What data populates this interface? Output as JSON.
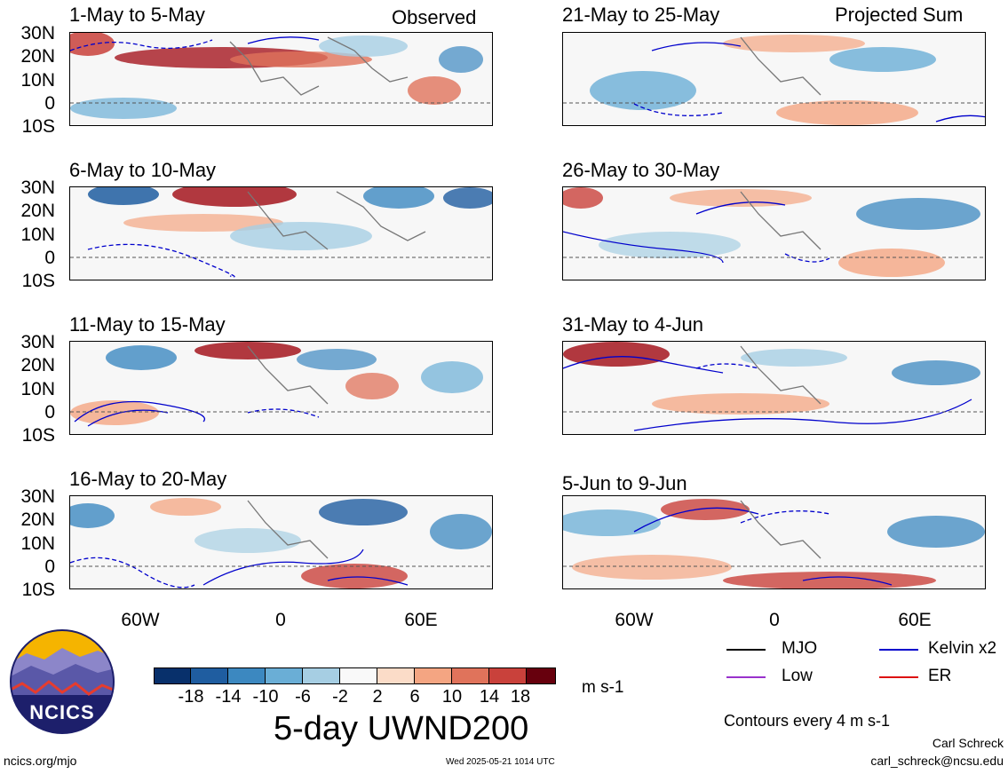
{
  "header": {
    "left_label": "Observed",
    "right_label": "Projected Sum"
  },
  "panels": [
    {
      "title": "1-May to 5-May"
    },
    {
      "title": "6-May to 10-May"
    },
    {
      "title": "11-May to 15-May"
    },
    {
      "title": "16-May to 20-May"
    },
    {
      "title": "21-May to 25-May"
    },
    {
      "title": "26-May to 30-May"
    },
    {
      "title": "31-May to 4-Jun"
    },
    {
      "title": "5-Jun to 9-Jun"
    }
  ],
  "axes": {
    "lat_labels": [
      "30N",
      "20N",
      "10N",
      "0",
      "10S"
    ],
    "lon_labels": [
      "60W",
      "0",
      "60E"
    ]
  },
  "colorbar": {
    "ticks": [
      "-18",
      "-14",
      "-10",
      "-6",
      "-2",
      "2",
      "6",
      "10",
      "14",
      "18"
    ],
    "colors": [
      "#08306b",
      "#1f5da0",
      "#3c88c0",
      "#6aaed6",
      "#a6cee3",
      "#d6e7f2",
      "#f9f9f9",
      "#fbdcc8",
      "#f4a582",
      "#e0735b",
      "#c9413b",
      "#a5161f",
      "#67000d"
    ],
    "units": "m s-1"
  },
  "variable_title": "5-day UWND200",
  "legend": {
    "items": [
      {
        "label": "MJO",
        "color": "#000000"
      },
      {
        "label": "Kelvin x2",
        "color": "#0000cc"
      },
      {
        "label": "Low",
        "color": "#9932cc"
      },
      {
        "label": "ER",
        "color": "#dd1111"
      }
    ],
    "contour_note": "Contours every 4 m s-1"
  },
  "logo": {
    "text": "NCICS"
  },
  "footer": {
    "url": "ncics.org/mjo",
    "timestamp": "Wed 2025-05-21 1014 UTC",
    "author": "Carl Schreck",
    "email": "carl_schreck@ncsu.edu"
  }
}
